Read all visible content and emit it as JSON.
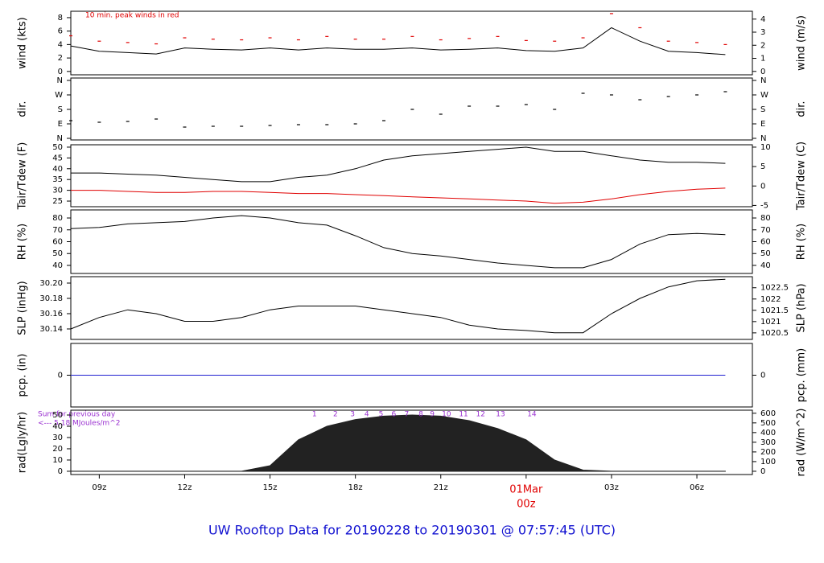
{
  "title": "UW Rooftop Data for 20190228  to  20190301 @ 07:57:45  (UTC)",
  "chart_data": [
    {
      "type": "line",
      "ylabel": "wind (kts)",
      "y2label": "wind (m/s)",
      "note": "10 min. peak winds in red",
      "x": [
        8,
        9,
        10,
        11,
        12,
        13,
        14,
        15,
        16,
        17,
        18,
        19,
        20,
        21,
        22,
        23,
        24,
        25,
        26,
        27,
        28,
        29,
        30,
        31
      ],
      "xlim": [
        8,
        31.95
      ],
      "ylim": [
        -0.5,
        8.95
      ],
      "yticks": [
        0,
        2,
        4,
        6,
        8
      ],
      "y2lim": [
        -0.26,
        4.6
      ],
      "y2ticks": [
        0,
        1,
        2,
        3,
        4
      ],
      "series": [
        {
          "name": "wind",
          "type": "line",
          "color": "#000000",
          "values": [
            3.8,
            3.0,
            2.8,
            2.6,
            3.5,
            3.3,
            3.2,
            3.5,
            3.2,
            3.5,
            3.3,
            3.3,
            3.5,
            3.2,
            3.3,
            3.5,
            3.1,
            3.0,
            3.5,
            6.5,
            4.5,
            3.0,
            2.8,
            2.5
          ]
        },
        {
          "name": "peak",
          "type": "points",
          "color": "#e00000",
          "values": [
            5.3,
            4.5,
            4.3,
            4.1,
            5.0,
            4.8,
            4.7,
            5.0,
            4.7,
            5.2,
            4.8,
            4.8,
            5.2,
            4.7,
            4.9,
            5.2,
            4.6,
            4.5,
            5.0,
            8.6,
            6.5,
            4.5,
            4.3,
            4.0
          ]
        }
      ]
    },
    {
      "type": "line",
      "ylabel": "dir.",
      "y2label": "dir.",
      "x": [
        8,
        9,
        10,
        11,
        12,
        13,
        14,
        15,
        16,
        17,
        18,
        19,
        20,
        21,
        22,
        23,
        24,
        25,
        26,
        27,
        28,
        29,
        30,
        31
      ],
      "xlim": [
        8,
        31.95
      ],
      "ylim": [
        -10,
        375
      ],
      "yticks": [
        {
          "value": 0,
          "label": "N"
        },
        {
          "value": 90,
          "label": "E"
        },
        {
          "value": 180,
          "label": "S"
        },
        {
          "value": 270,
          "label": "W"
        },
        {
          "value": 360,
          "label": "N"
        }
      ],
      "y2lim": [
        -10,
        375
      ],
      "y2ticks": [
        {
          "value": 0,
          "label": "N"
        },
        {
          "value": 90,
          "label": "E"
        },
        {
          "value": 180,
          "label": "S"
        },
        {
          "value": 270,
          "label": "W"
        },
        {
          "value": 360,
          "label": "N"
        }
      ],
      "series": [
        {
          "name": "direction",
          "type": "points",
          "color": "#000000",
          "values": [
            110,
            100,
            105,
            120,
            70,
            75,
            75,
            80,
            85,
            85,
            90,
            110,
            180,
            150,
            200,
            200,
            210,
            180,
            280,
            270,
            240,
            260,
            270,
            290
          ]
        }
      ]
    },
    {
      "type": "line",
      "ylabel": "Tair/Tdew (F)",
      "y2label": "Tair/Tdew (C)",
      "x": [
        8,
        9,
        10,
        11,
        12,
        13,
        14,
        15,
        16,
        17,
        18,
        19,
        20,
        21,
        22,
        23,
        24,
        25,
        26,
        27,
        28,
        29,
        30,
        31
      ],
      "xlim": [
        8,
        31.95
      ],
      "ylim": [
        22.4,
        51.1
      ],
      "yticks": [
        25,
        30,
        35,
        40,
        45,
        50
      ],
      "y2lim": [
        -5.33,
        10.61
      ],
      "y2ticks": [
        -5,
        0,
        5,
        10
      ],
      "series": [
        {
          "name": "Tair",
          "type": "line",
          "color": "#000000",
          "values": [
            38,
            38,
            37.5,
            37,
            36,
            35,
            34,
            34,
            36,
            37,
            40,
            44,
            46,
            47,
            48,
            49,
            50,
            48,
            48,
            46,
            44,
            43,
            43,
            42.5
          ]
        },
        {
          "name": "Tdew",
          "type": "line",
          "color": "#e00000",
          "values": [
            30,
            30,
            29.5,
            29,
            29,
            29.5,
            29.5,
            29,
            28.5,
            28.5,
            28,
            27.5,
            27,
            26.5,
            26,
            25.5,
            25,
            24,
            24.5,
            26,
            28,
            29.5,
            30.5,
            31
          ]
        }
      ]
    },
    {
      "type": "line",
      "ylabel": "RH (%)",
      "y2label": "RH (%)",
      "x": [
        8,
        9,
        10,
        11,
        12,
        13,
        14,
        15,
        16,
        17,
        18,
        19,
        20,
        21,
        22,
        23,
        24,
        25,
        26,
        27,
        28,
        29,
        30,
        31
      ],
      "xlim": [
        8,
        31.95
      ],
      "ylim": [
        33.2,
        86.8
      ],
      "yticks": [
        40,
        50,
        60,
        70,
        80
      ],
      "y2lim": [
        33.2,
        86.8
      ],
      "y2ticks": [
        40,
        50,
        60,
        70,
        80
      ],
      "series": [
        {
          "name": "RH",
          "type": "line",
          "color": "#000000",
          "values": [
            71,
            72,
            75,
            76,
            77,
            80,
            82,
            80,
            76,
            74,
            65,
            55,
            50,
            48,
            45,
            42,
            40,
            38,
            38,
            45,
            58,
            66,
            67,
            66
          ]
        }
      ]
    },
    {
      "type": "line",
      "ylabel": "SLP (inHg)",
      "y2label": "SLP (hPa)",
      "x": [
        8,
        9,
        10,
        11,
        12,
        13,
        14,
        15,
        16,
        17,
        18,
        19,
        20,
        21,
        22,
        23,
        24,
        25,
        26,
        27,
        28,
        29,
        30,
        31
      ],
      "xlim": [
        8,
        31.95
      ],
      "ylim": [
        30.1263,
        30.2084
      ],
      "yticks": [
        30.14,
        30.16,
        30.18,
        {
          "value": 30.2,
          "label": "30.20"
        }
      ],
      "y2lim": [
        1020.21,
        1022.99
      ],
      "y2ticks": [
        1020.5,
        1021,
        1021.5,
        1022,
        1022.5
      ],
      "series": [
        {
          "name": "SLP",
          "type": "line",
          "color": "#000000",
          "values": [
            30.14,
            30.155,
            30.165,
            30.16,
            30.15,
            30.15,
            30.155,
            30.165,
            30.17,
            30.17,
            30.17,
            30.165,
            30.16,
            30.155,
            30.145,
            30.14,
            30.138,
            30.135,
            30.135,
            30.16,
            30.18,
            30.195,
            30.203,
            30.205
          ]
        }
      ]
    },
    {
      "type": "line",
      "ylabel": "pcp. (in)",
      "y2label": "pcp. (mm)",
      "x": [
        8,
        9,
        10,
        11,
        12,
        13,
        14,
        15,
        16,
        17,
        18,
        19,
        20,
        21,
        22,
        23,
        24,
        25,
        26,
        27,
        28,
        29,
        30,
        31
      ],
      "xlim": [
        8,
        31.95
      ],
      "ylim": [
        -1,
        1
      ],
      "yticks": [
        0
      ],
      "y2lim": [
        -25.4,
        25.4
      ],
      "y2ticks": [
        0
      ],
      "series": [
        {
          "name": "pcp",
          "type": "line",
          "color": "#2020d0",
          "values": [
            0,
            0,
            0,
            0,
            0,
            0,
            0,
            0,
            0,
            0,
            0,
            0,
            0,
            0,
            0,
            0,
            0,
            0,
            0,
            0,
            0,
            0,
            0,
            0
          ]
        }
      ]
    },
    {
      "type": "line",
      "ylabel": "rad(Lgly/hr)",
      "y2label": "rad (W/m^2)",
      "notes": [
        "Sum for previous day",
        "<--- 5.18 MJoules/m^2"
      ],
      "x": [
        8,
        9,
        10,
        11,
        12,
        13,
        14,
        15,
        16,
        17,
        18,
        19,
        20,
        21,
        22,
        23,
        24,
        25,
        26,
        27,
        28,
        29,
        30,
        31
      ],
      "xlim": [
        8,
        31.95
      ],
      "ylim": [
        -2.9,
        54.3
      ],
      "yticks": [
        0,
        10,
        20,
        30,
        40,
        50
      ],
      "y2lim": [
        -33.7,
        631.5
      ],
      "y2ticks": [
        0,
        100,
        200,
        300,
        400,
        500,
        600
      ],
      "xticks": [
        {
          "value": 9,
          "label": "09z"
        },
        {
          "value": 12,
          "label": "12z"
        },
        {
          "value": 15,
          "label": "15z"
        },
        {
          "value": 18,
          "label": "18z"
        },
        {
          "value": 21,
          "label": "21z"
        },
        {
          "value": 24,
          "label": "00z",
          "color": "#e00000"
        },
        {
          "value": 27,
          "label": "03z"
        },
        {
          "value": 30,
          "label": "06z"
        }
      ],
      "date_label": {
        "value": 24,
        "label": "01Mar",
        "color": "#e00000"
      },
      "hour_marks": {
        "x": [
          16.56,
          17.3,
          17.9,
          18.4,
          18.9,
          19.35,
          19.8,
          20.3,
          20.7,
          21.2,
          21.8,
          22.4,
          23.1,
          24.2
        ],
        "labels": [
          1,
          2,
          3,
          4,
          5,
          6,
          7,
          8,
          9,
          10,
          11,
          12,
          13,
          14
        ]
      },
      "series": [
        {
          "name": "radiation",
          "type": "area",
          "color": "#222222",
          "values": [
            0,
            0,
            0,
            0,
            0,
            0,
            0,
            5,
            28,
            40,
            46,
            49,
            50,
            49,
            45,
            38,
            28,
            10,
            1,
            0,
            0,
            0,
            0,
            0
          ]
        }
      ]
    }
  ]
}
